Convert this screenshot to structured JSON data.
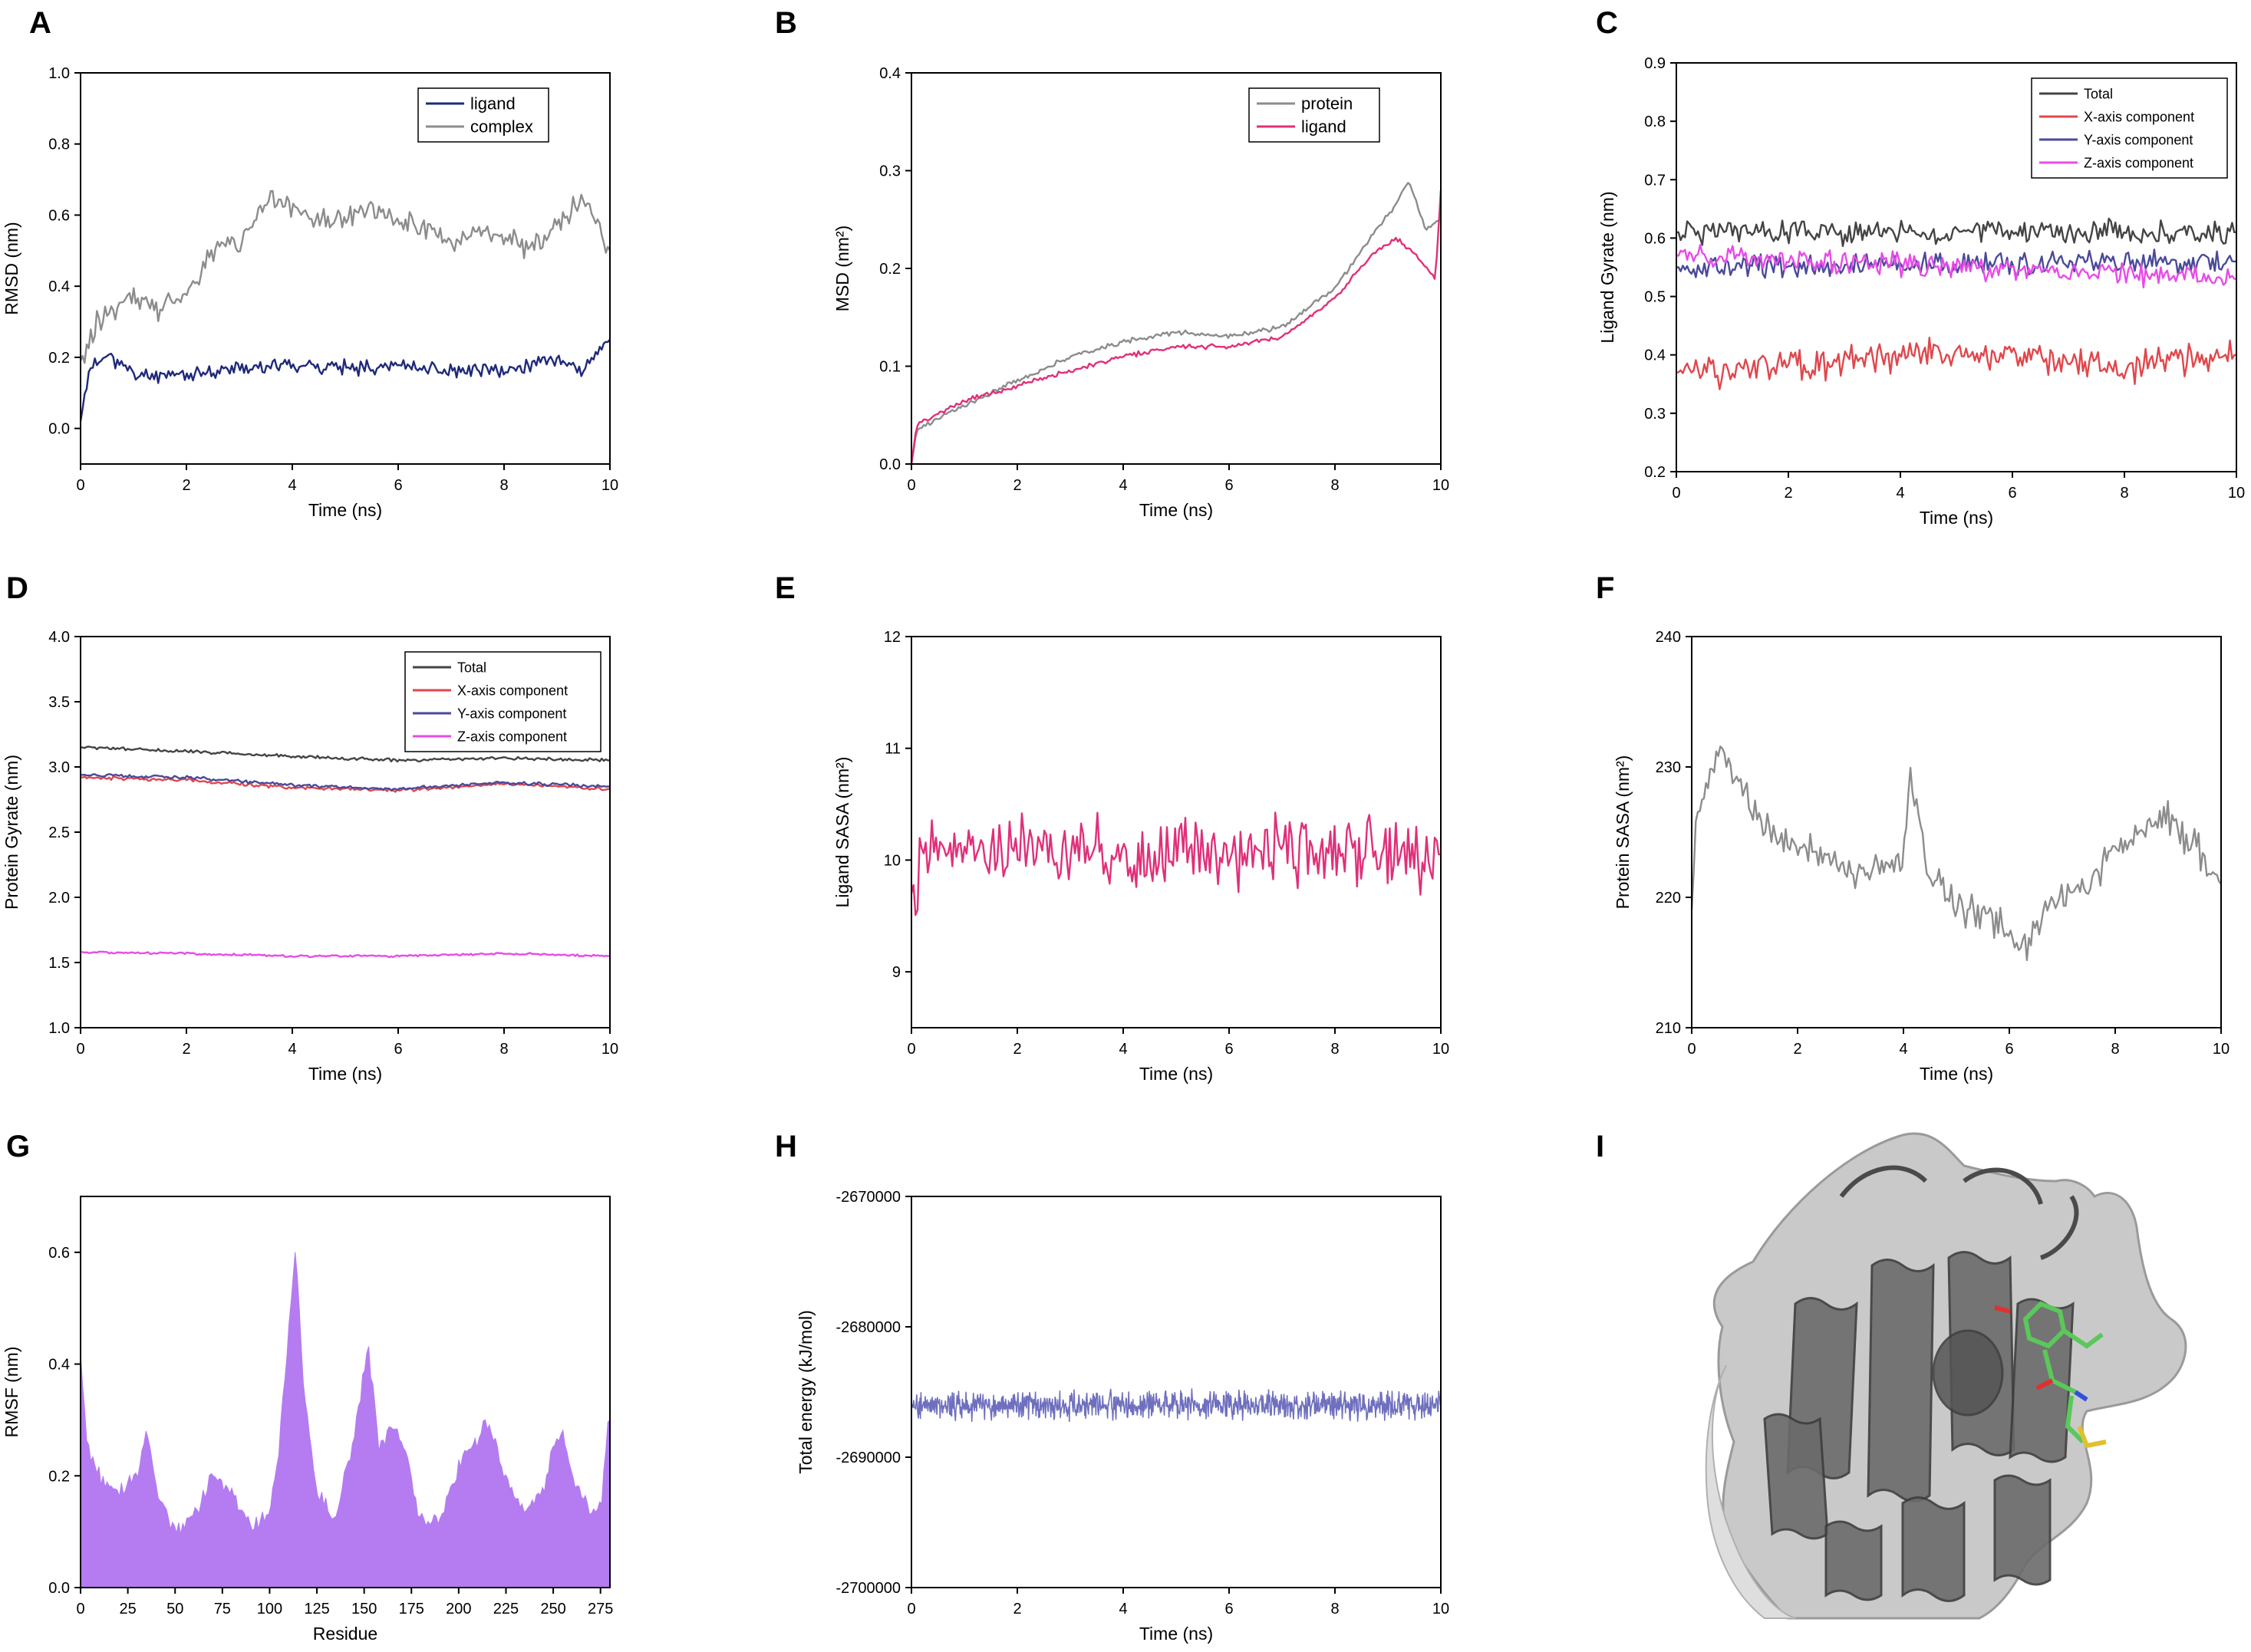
{
  "colors": {
    "ligand_navy": "#1f2a7a",
    "complex_gray": "#8c8c8c",
    "msd_protein": "#8c8c8c",
    "msd_ligand": "#e0307a",
    "total": "#444444",
    "x_comp": "#e0474c",
    "y_comp": "#4a4a9a",
    "z_comp": "#e84be8",
    "sasa_ligand": "#e0307a",
    "sasa_protein": "#8c8c8c",
    "rmsf_fill": "#b47cf0",
    "energy": "#6f6fbf"
  },
  "chart_data": [
    {
      "panel": "A",
      "type": "line",
      "xlabel": "Time (ns)",
      "ylabel": "RMSD (nm)",
      "xlim": [
        0,
        10
      ],
      "ylim": [
        -0.1,
        1.0
      ],
      "xticks": [
        0,
        2,
        4,
        6,
        8,
        10
      ],
      "yticks": [
        0.0,
        0.2,
        0.4,
        0.6,
        0.8,
        1.0
      ],
      "ytick_labels": [
        "0.0",
        "0.2",
        "0.4",
        "0.6",
        "0.8",
        "1.0"
      ],
      "legend": "top-right",
      "series": [
        {
          "name": "ligand",
          "color_key": "ligand_navy",
          "anchors": [
            [
              0,
              0.02
            ],
            [
              0.15,
              0.16
            ],
            [
              0.5,
              0.21
            ],
            [
              1,
              0.15
            ],
            [
              2,
              0.15
            ],
            [
              3,
              0.17
            ],
            [
              4,
              0.18
            ],
            [
              5,
              0.17
            ],
            [
              6,
              0.18
            ],
            [
              7,
              0.16
            ],
            [
              8,
              0.16
            ],
            [
              9,
              0.2
            ],
            [
              9.5,
              0.16
            ],
            [
              10,
              0.25
            ]
          ],
          "noise": 0.025,
          "seed": 11
        },
        {
          "name": "complex",
          "color_key": "complex_gray",
          "anchors": [
            [
              0,
              0.19
            ],
            [
              0.3,
              0.3
            ],
            [
              1,
              0.38
            ],
            [
              1.5,
              0.33
            ],
            [
              2,
              0.38
            ],
            [
              2.5,
              0.5
            ],
            [
              3,
              0.52
            ],
            [
              3.5,
              0.65
            ],
            [
              4,
              0.62
            ],
            [
              4.5,
              0.58
            ],
            [
              5,
              0.6
            ],
            [
              5.5,
              0.62
            ],
            [
              6,
              0.58
            ],
            [
              6.5,
              0.56
            ],
            [
              7,
              0.52
            ],
            [
              7.5,
              0.55
            ],
            [
              8,
              0.54
            ],
            [
              8.5,
              0.5
            ],
            [
              9,
              0.58
            ],
            [
              9.5,
              0.64
            ],
            [
              10,
              0.5
            ]
          ],
          "noise": 0.04,
          "seed": 22
        }
      ]
    },
    {
      "panel": "B",
      "type": "line",
      "xlabel": "Time (ns)",
      "ylabel": "MSD (nm²)",
      "xlim": [
        0,
        10
      ],
      "ylim": [
        0,
        0.4
      ],
      "xticks": [
        0,
        2,
        4,
        6,
        8,
        10
      ],
      "yticks": [
        0.0,
        0.1,
        0.2,
        0.3,
        0.4
      ],
      "ytick_labels": [
        "0.0",
        "0.1",
        "0.2",
        "0.3",
        "0.4"
      ],
      "legend": "top-right",
      "series": [
        {
          "name": "protein",
          "color_key": "msd_protein",
          "anchors": [
            [
              0,
              0
            ],
            [
              0.1,
              0.035
            ],
            [
              1,
              0.06
            ],
            [
              2,
              0.085
            ],
            [
              3,
              0.11
            ],
            [
              4,
              0.125
            ],
            [
              5,
              0.135
            ],
            [
              6,
              0.13
            ],
            [
              7,
              0.14
            ],
            [
              8,
              0.18
            ],
            [
              8.8,
              0.24
            ],
            [
              9.2,
              0.27
            ],
            [
              9.4,
              0.29
            ],
            [
              9.7,
              0.24
            ],
            [
              10,
              0.25
            ]
          ],
          "noise": 0.003,
          "seed": 33
        },
        {
          "name": "ligand",
          "color_key": "msd_ligand",
          "anchors": [
            [
              0,
              0
            ],
            [
              0.1,
              0.04
            ],
            [
              1,
              0.065
            ],
            [
              2,
              0.08
            ],
            [
              3,
              0.095
            ],
            [
              4,
              0.11
            ],
            [
              5,
              0.12
            ],
            [
              6,
              0.12
            ],
            [
              7,
              0.13
            ],
            [
              8,
              0.17
            ],
            [
              8.8,
              0.22
            ],
            [
              9.2,
              0.23
            ],
            [
              9.6,
              0.21
            ],
            [
              9.9,
              0.19
            ],
            [
              10,
              0.28
            ]
          ],
          "noise": 0.003,
          "seed": 44
        }
      ]
    },
    {
      "panel": "C",
      "type": "line",
      "xlabel": "Time (ns)",
      "ylabel": "Ligand Gyrate (nm)",
      "xlim": [
        0,
        10
      ],
      "ylim": [
        0.2,
        0.9
      ],
      "xticks": [
        0,
        2,
        4,
        6,
        8,
        10
      ],
      "yticks": [
        0.2,
        0.3,
        0.4,
        0.5,
        0.6,
        0.7,
        0.8,
        0.9
      ],
      "ytick_labels": [
        "0.2",
        "0.3",
        "0.4",
        "0.5",
        "0.6",
        "0.7",
        "0.8",
        "0.9"
      ],
      "legend": "top-right",
      "series": [
        {
          "name": "Total",
          "color_key": "total",
          "anchors": [
            [
              0,
              0.61
            ],
            [
              10,
              0.61
            ]
          ],
          "noise": 0.025,
          "seed": 51
        },
        {
          "name": "X-axis component",
          "color_key": "x_comp",
          "anchors": [
            [
              0,
              0.37
            ],
            [
              2,
              0.38
            ],
            [
              4,
              0.4
            ],
            [
              6,
              0.4
            ],
            [
              8,
              0.38
            ],
            [
              10,
              0.4
            ]
          ],
          "noise": 0.035,
          "seed": 52
        },
        {
          "name": "Y-axis component",
          "color_key": "y_comp",
          "anchors": [
            [
              0,
              0.55
            ],
            [
              10,
              0.56
            ]
          ],
          "noise": 0.025,
          "seed": 53
        },
        {
          "name": "Z-axis component",
          "color_key": "z_comp",
          "anchors": [
            [
              0,
              0.57
            ],
            [
              10,
              0.53
            ]
          ],
          "noise": 0.025,
          "seed": 54
        }
      ]
    },
    {
      "panel": "D",
      "type": "line",
      "xlabel": "Time (ns)",
      "ylabel": "Protein Gyrate (nm)",
      "xlim": [
        0,
        10
      ],
      "ylim": [
        1.0,
        4.0
      ],
      "xticks": [
        0,
        2,
        4,
        6,
        8,
        10
      ],
      "yticks": [
        1.0,
        1.5,
        2.0,
        2.5,
        3.0,
        3.5,
        4.0
      ],
      "ytick_labels": [
        "1.0",
        "1.5",
        "2.0",
        "2.5",
        "3.0",
        "3.5",
        "4.0"
      ],
      "legend": "top-right",
      "series": [
        {
          "name": "Total",
          "color_key": "total",
          "anchors": [
            [
              0,
              3.15
            ],
            [
              2,
              3.12
            ],
            [
              4,
              3.08
            ],
            [
              6,
              3.05
            ],
            [
              8,
              3.07
            ],
            [
              10,
              3.05
            ]
          ],
          "noise": 0.015,
          "seed": 61
        },
        {
          "name": "X-axis component",
          "color_key": "x_comp",
          "anchors": [
            [
              0,
              2.92
            ],
            [
              2,
              2.9
            ],
            [
              4,
              2.84
            ],
            [
              6,
              2.82
            ],
            [
              8,
              2.87
            ],
            [
              10,
              2.83
            ]
          ],
          "noise": 0.015,
          "seed": 62
        },
        {
          "name": "Y-axis component",
          "color_key": "y_comp",
          "anchors": [
            [
              0,
              2.94
            ],
            [
              2,
              2.92
            ],
            [
              4,
              2.86
            ],
            [
              6,
              2.83
            ],
            [
              8,
              2.88
            ],
            [
              10,
              2.85
            ]
          ],
          "noise": 0.015,
          "seed": 63
        },
        {
          "name": "Z-axis component",
          "color_key": "z_comp",
          "anchors": [
            [
              0,
              1.58
            ],
            [
              2,
              1.57
            ],
            [
              4,
              1.55
            ],
            [
              6,
              1.55
            ],
            [
              8,
              1.57
            ],
            [
              10,
              1.55
            ]
          ],
          "noise": 0.01,
          "seed": 64
        }
      ]
    },
    {
      "panel": "E",
      "type": "line",
      "xlabel": "Time (ns)",
      "ylabel": "Ligand SASA (nm²)",
      "xlim": [
        0,
        10
      ],
      "ylim": [
        8.5,
        12
      ],
      "xticks": [
        0,
        2,
        4,
        6,
        8,
        10
      ],
      "yticks": [
        9,
        10,
        11,
        12
      ],
      "ytick_labels": [
        "9",
        "10",
        "11",
        "12"
      ],
      "legend": "none",
      "series": [
        {
          "name": "Ligand SASA",
          "color_key": "sasa_ligand",
          "anchors": [
            [
              0,
              9.7
            ],
            [
              0.2,
              10.1
            ],
            [
              10,
              10.05
            ]
          ],
          "noise": 0.38,
          "seed": 71
        }
      ]
    },
    {
      "panel": "F",
      "type": "line",
      "xlabel": "Time (ns)",
      "ylabel": "Protein SASA (nm²)",
      "xlim": [
        0,
        10
      ],
      "ylim": [
        210,
        240
      ],
      "xticks": [
        0,
        2,
        4,
        6,
        8,
        10
      ],
      "yticks": [
        210,
        220,
        230,
        240
      ],
      "ytick_labels": [
        "210",
        "220",
        "230",
        "240"
      ],
      "legend": "none",
      "series": [
        {
          "name": "Protein SASA",
          "color_key": "sasa_protein",
          "anchors": [
            [
              0,
              219
            ],
            [
              0.1,
              227
            ],
            [
              0.5,
              231
            ],
            [
              1,
              228
            ],
            [
              1.5,
              225
            ],
            [
              2,
              224
            ],
            [
              2.5,
              223
            ],
            [
              3,
              222
            ],
            [
              3.5,
              222
            ],
            [
              4,
              223
            ],
            [
              4.1,
              229
            ],
            [
              4.5,
              222
            ],
            [
              5,
              219
            ],
            [
              5.5,
              219
            ],
            [
              6,
              217
            ],
            [
              6.3,
              216
            ],
            [
              6.7,
              219
            ],
            [
              7,
              220
            ],
            [
              7.5,
              221
            ],
            [
              8,
              224
            ],
            [
              8.5,
              225
            ],
            [
              9,
              226
            ],
            [
              9.5,
              224
            ],
            [
              10,
              221
            ]
          ],
          "noise": 1.6,
          "seed": 81
        }
      ]
    },
    {
      "panel": "G",
      "type": "area",
      "xlabel": "Residue",
      "ylabel": "RMSF (nm)",
      "xlim": [
        0,
        280
      ],
      "ylim": [
        0,
        0.7
      ],
      "xticks": [
        0,
        25,
        50,
        75,
        100,
        125,
        150,
        175,
        200,
        225,
        250,
        275
      ],
      "yticks": [
        0.0,
        0.2,
        0.4,
        0.6
      ],
      "ytick_labels": [
        "0.0",
        "0.2",
        "0.4",
        "0.6"
      ],
      "legend": "none",
      "series": [
        {
          "name": "RMSF",
          "color_key": "rmsf_fill",
          "anchors": [
            [
              0,
              0.42
            ],
            [
              3,
              0.26
            ],
            [
              10,
              0.2
            ],
            [
              20,
              0.17
            ],
            [
              30,
              0.2
            ],
            [
              35,
              0.28
            ],
            [
              40,
              0.17
            ],
            [
              50,
              0.1
            ],
            [
              60,
              0.13
            ],
            [
              70,
              0.2
            ],
            [
              80,
              0.17
            ],
            [
              90,
              0.1
            ],
            [
              100,
              0.14
            ],
            [
              105,
              0.25
            ],
            [
              110,
              0.46
            ],
            [
              114,
              0.6
            ],
            [
              118,
              0.35
            ],
            [
              125,
              0.17
            ],
            [
              135,
              0.12
            ],
            [
              145,
              0.28
            ],
            [
              152,
              0.43
            ],
            [
              158,
              0.25
            ],
            [
              165,
              0.3
            ],
            [
              172,
              0.24
            ],
            [
              180,
              0.12
            ],
            [
              190,
              0.12
            ],
            [
              200,
              0.22
            ],
            [
              210,
              0.26
            ],
            [
              215,
              0.3
            ],
            [
              225,
              0.2
            ],
            [
              235,
              0.14
            ],
            [
              245,
              0.18
            ],
            [
              250,
              0.25
            ],
            [
              255,
              0.27
            ],
            [
              262,
              0.18
            ],
            [
              270,
              0.14
            ],
            [
              276,
              0.16
            ],
            [
              279,
              0.3
            ]
          ],
          "noise": 0.02,
          "seed": 91
        }
      ]
    },
    {
      "panel": "H",
      "type": "line",
      "xlabel": "Time (ns)",
      "ylabel": "Total energy (kJ/mol)",
      "xlim": [
        0,
        10
      ],
      "ylim": [
        -2700000,
        -2670000
      ],
      "xticks": [
        0,
        2,
        4,
        6,
        8,
        10
      ],
      "yticks": [
        -2700000,
        -2690000,
        -2680000,
        -2670000
      ],
      "ytick_labels": [
        "-2700000",
        "-2690000",
        "-2680000",
        "-2670000"
      ],
      "legend": "none",
      "series": [
        {
          "name": "Total energy",
          "color_key": "energy",
          "anchors": [
            [
              0,
              -2686000
            ],
            [
              10,
              -2686000
            ]
          ],
          "noise": 1300,
          "seed": 101,
          "points": 1000
        }
      ]
    }
  ],
  "panel_i": {
    "label": "I",
    "description_icon": "protein-ligand-complex-render"
  }
}
